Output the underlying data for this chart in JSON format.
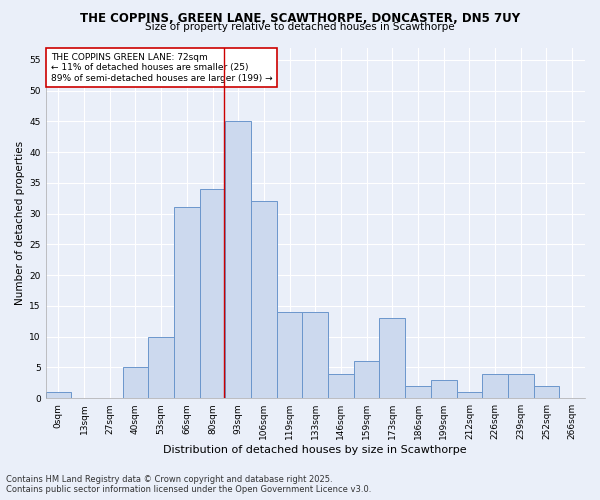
{
  "title_line1": "THE COPPINS, GREEN LANE, SCAWTHORPE, DONCASTER, DN5 7UY",
  "title_line2": "Size of property relative to detached houses in Scawthorpe",
  "xlabel": "Distribution of detached houses by size in Scawthorpe",
  "ylabel": "Number of detached properties",
  "footnote": "Contains HM Land Registry data © Crown copyright and database right 2025.\nContains public sector information licensed under the Open Government Licence v3.0.",
  "bin_labels": [
    "0sqm",
    "13sqm",
    "27sqm",
    "40sqm",
    "53sqm",
    "66sqm",
    "80sqm",
    "93sqm",
    "106sqm",
    "119sqm",
    "133sqm",
    "146sqm",
    "159sqm",
    "173sqm",
    "186sqm",
    "199sqm",
    "212sqm",
    "226sqm",
    "239sqm",
    "252sqm",
    "266sqm"
  ],
  "bar_values": [
    1,
    0,
    0,
    5,
    10,
    31,
    34,
    45,
    32,
    14,
    14,
    4,
    6,
    13,
    2,
    3,
    1,
    4,
    4,
    2,
    0
  ],
  "bar_color": "#ccd9ee",
  "bar_edge_color": "#6b96cc",
  "bg_color": "#eaeff9",
  "grid_color": "#ffffff",
  "vline_x": 6.46,
  "vline_color": "#cc0000",
  "annotation_text": "THE COPPINS GREEN LANE: 72sqm\n← 11% of detached houses are smaller (25)\n89% of semi-detached houses are larger (199) →",
  "annotation_box_color": "white",
  "annotation_box_edge": "#cc0000",
  "ylim": [
    0,
    57
  ],
  "yticks": [
    0,
    5,
    10,
    15,
    20,
    25,
    30,
    35,
    40,
    45,
    50,
    55
  ],
  "title_fontsize": 8.5,
  "subtitle_fontsize": 7.5,
  "tick_fontsize": 6.5,
  "ylabel_fontsize": 7.5,
  "xlabel_fontsize": 8.0,
  "annot_fontsize": 6.5,
  "footnote_fontsize": 6.0
}
